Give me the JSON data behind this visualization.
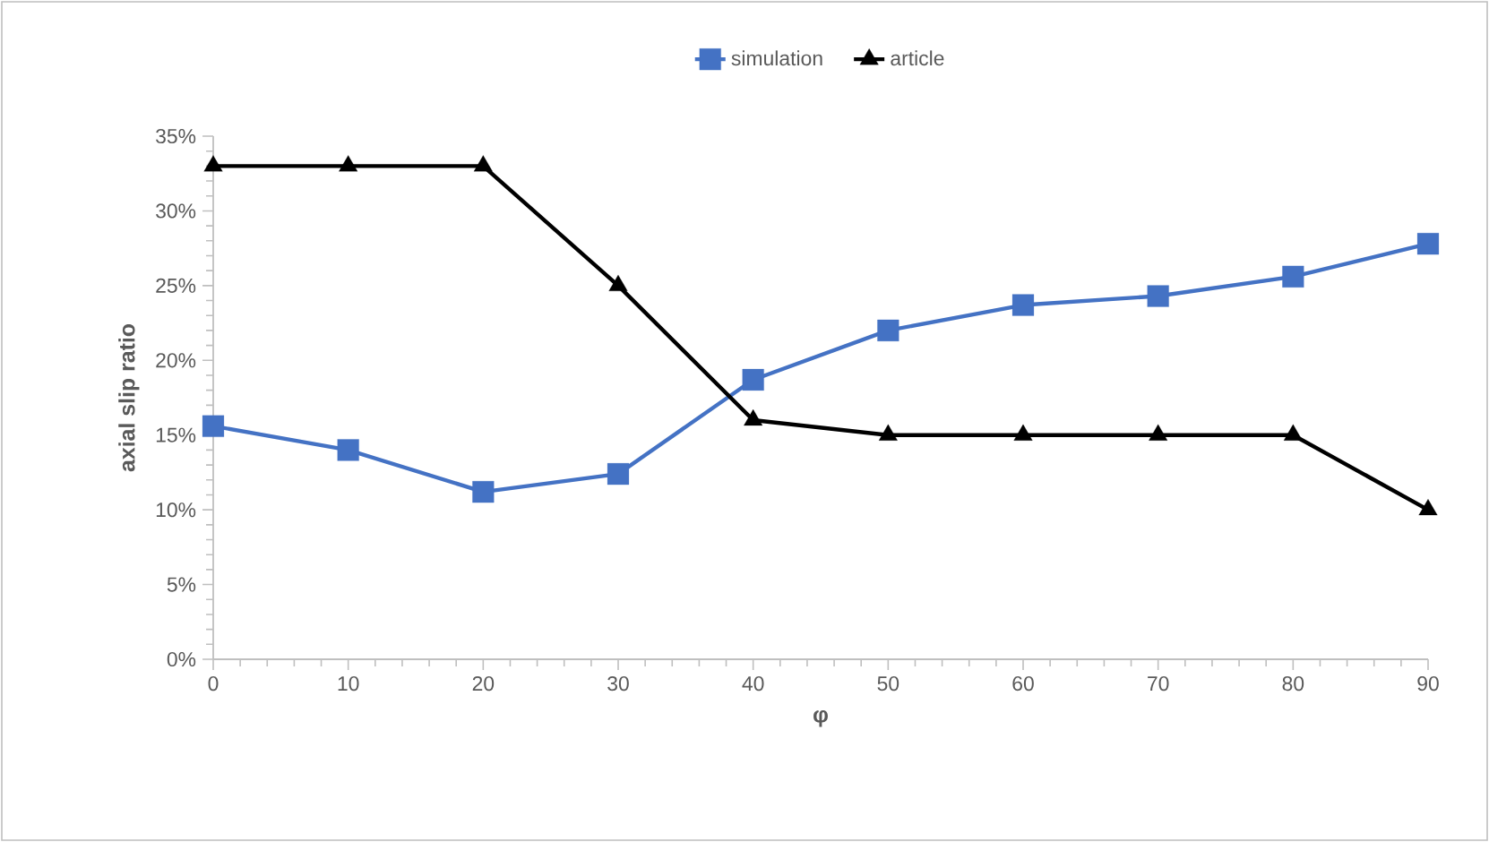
{
  "chart_data": {
    "type": "line",
    "xlabel": "φ",
    "ylabel": "axial slip ratio",
    "x": [
      0,
      10,
      20,
      30,
      40,
      50,
      60,
      70,
      80,
      90
    ],
    "series": [
      {
        "name": "simulation",
        "color": "#4472c4",
        "marker": "square",
        "values": [
          15.6,
          14.0,
          11.2,
          12.4,
          18.7,
          22.0,
          23.7,
          24.3,
          25.6,
          27.8
        ]
      },
      {
        "name": "article",
        "color": "#000000",
        "marker": "triangle",
        "values": [
          33,
          33,
          33,
          25,
          16,
          15,
          15,
          15,
          15,
          10
        ]
      }
    ],
    "xlim": [
      0,
      90
    ],
    "xticks": [
      0,
      10,
      20,
      30,
      40,
      50,
      60,
      70,
      80,
      90
    ],
    "ylim": [
      0,
      35
    ],
    "yticks": [
      {
        "value": 0,
        "label": "0%"
      },
      {
        "value": 5,
        "label": "5%"
      },
      {
        "value": 10,
        "label": "10%"
      },
      {
        "value": 15,
        "label": "15%"
      },
      {
        "value": 20,
        "label": "20%"
      },
      {
        "value": 25,
        "label": "25%"
      },
      {
        "value": 30,
        "label": "30%"
      },
      {
        "value": 35,
        "label": "35%"
      }
    ],
    "grid": false,
    "legend": "top",
    "line_style": "solid"
  }
}
